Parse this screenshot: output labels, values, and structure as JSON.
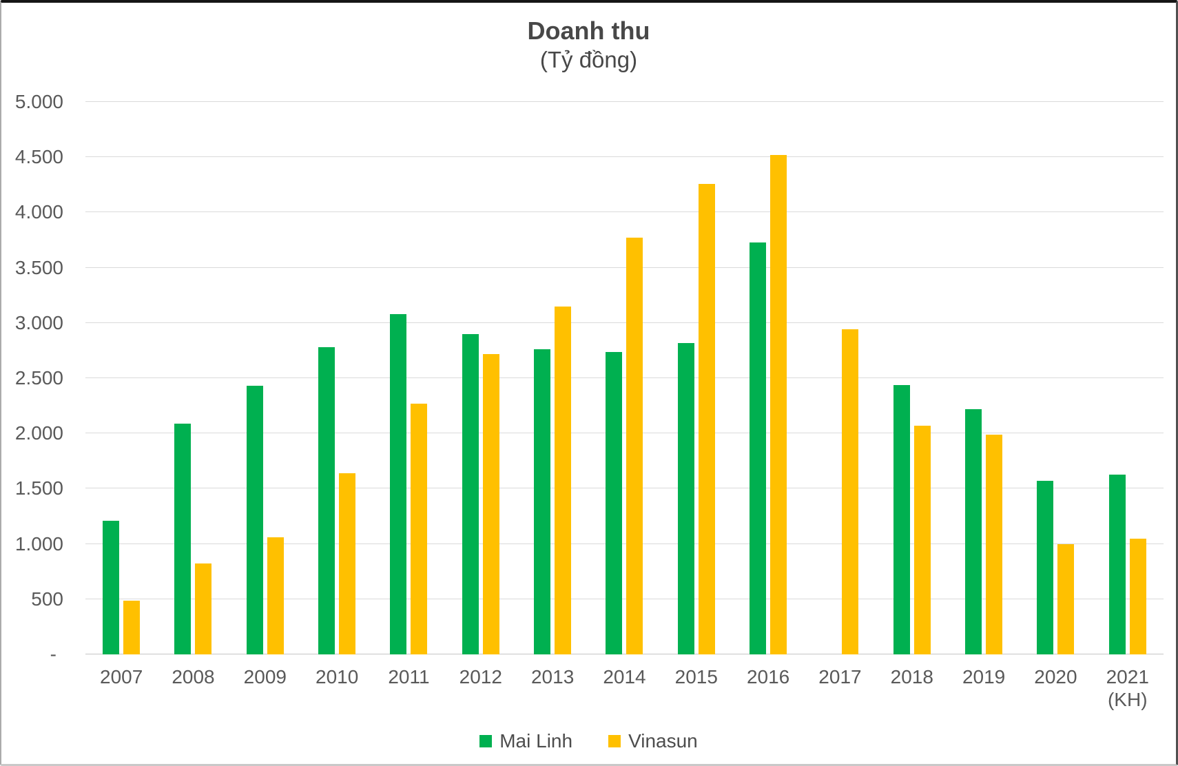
{
  "title": "Doanh thu",
  "subtitle": "(Tỷ đồng)",
  "chart_data": {
    "type": "bar",
    "title": "Doanh thu",
    "subtitle": "(Tỷ đồng)",
    "unit": "Tỷ đồng",
    "ylim": [
      0,
      5000
    ],
    "grid": true,
    "legend_position": "bottom",
    "y_ticks": [
      {
        "label": "5.000",
        "value": 5000
      },
      {
        "label": "4.500",
        "value": 4500
      },
      {
        "label": "4.000",
        "value": 4000
      },
      {
        "label": "3.500",
        "value": 3500
      },
      {
        "label": "3.000",
        "value": 3000
      },
      {
        "label": "2.500",
        "value": 2500
      },
      {
        "label": "2.000",
        "value": 2000
      },
      {
        "label": "1.500",
        "value": 1500
      },
      {
        "label": "1.000",
        "value": 1000
      },
      {
        "label": "500",
        "value": 500
      },
      {
        "label": "-",
        "value": 0
      }
    ],
    "categories": [
      "2007",
      "2008",
      "2009",
      "2010",
      "2011",
      "2012",
      "2013",
      "2014",
      "2015",
      "2016",
      "2017",
      "2018",
      "2019",
      "2020",
      "2021 (KH)"
    ],
    "x_tick_lines": [
      [
        "2007"
      ],
      [
        "2008"
      ],
      [
        "2009"
      ],
      [
        "2010"
      ],
      [
        "2011"
      ],
      [
        "2012"
      ],
      [
        "2013"
      ],
      [
        "2014"
      ],
      [
        "2015"
      ],
      [
        "2016"
      ],
      [
        "2017"
      ],
      [
        "2018"
      ],
      [
        "2019"
      ],
      [
        "2020"
      ],
      [
        "2021",
        "(KH)"
      ]
    ],
    "series": [
      {
        "name": "Mai Linh",
        "color": "#00B050",
        "values": [
          1210,
          2090,
          2430,
          2780,
          3080,
          2900,
          2760,
          2740,
          2820,
          3730,
          null,
          2440,
          2220,
          1570,
          1630
        ]
      },
      {
        "name": "Vinasun",
        "color": "#FFC000",
        "values": [
          485,
          820,
          1060,
          1640,
          2270,
          2720,
          3150,
          3770,
          4260,
          4520,
          2940,
          2070,
          1990,
          1000,
          1050
        ]
      }
    ]
  }
}
